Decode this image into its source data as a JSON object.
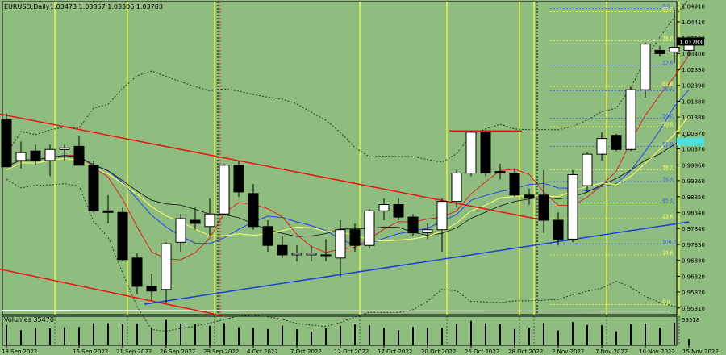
{
  "header": {
    "symbol": "EURUSD,Daily",
    "ohlc": "1.03473 1.03867 1.03306 1.03783"
  },
  "volume_label": "Volumes 35470",
  "colors": {
    "background": "#8fbd7f",
    "bull": "#ffffff",
    "bear": "#000000",
    "vline": "#ffff33",
    "trend_red": "#ee1111",
    "trend_blue": "#1a3fdd",
    "fib_blue": "#3a5cff",
    "fib_yellow": "#ffff55",
    "bollinger": "#1f3f1f",
    "ma_red": "#dd2222",
    "ma_blue": "#2244ee",
    "ma_black": "#111111",
    "ma_yellow": "#ffff66"
  },
  "chart_data": {
    "type": "candlestick",
    "y_ticks": [
      "1.04910",
      "1.04410",
      "1.03900",
      "1.03400",
      "1.02890",
      "1.02390",
      "1.01880",
      "1.01380",
      "1.00870",
      "1.00370",
      "0.99860",
      "0.99360",
      "0.98850",
      "0.98340",
      "0.97840",
      "0.97330",
      "0.96830",
      "0.96320",
      "0.95820",
      "0.95310"
    ],
    "ylim": [
      0.951,
      1.0505
    ],
    "current_price": "1.03783",
    "volume_scale_label": "59518",
    "x_labels": [
      {
        "i": 0,
        "t": "13 Sep 2022"
      },
      {
        "i": 5,
        "t": "16 Sep 2022"
      },
      {
        "i": 8,
        "t": "21 Sep 2022"
      },
      {
        "i": 11,
        "t": "26 Sep 2022"
      },
      {
        "i": 14,
        "t": "29 Sep 2022"
      },
      {
        "i": 17,
        "t": "4 Oct 2022"
      },
      {
        "i": 20,
        "t": "7 Oct 2022"
      },
      {
        "i": 23,
        "t": "12 Oct 2022"
      },
      {
        "i": 26,
        "t": "17 Oct 2022"
      },
      {
        "i": 29,
        "t": "20 Oct 2022"
      },
      {
        "i": 32,
        "t": "25 Oct 2022"
      },
      {
        "i": 35,
        "t": "28 Oct 2022"
      },
      {
        "i": 38,
        "t": "2 Nov 2022"
      },
      {
        "i": 41,
        "t": "7 Nov 2022"
      },
      {
        "i": 44,
        "t": "10 Nov 2022"
      },
      {
        "i": 47,
        "t": "15 Nov 2022"
      }
    ],
    "yellow_vlines": [
      3,
      8,
      14,
      24,
      30,
      35,
      36,
      41,
      46
    ],
    "black_vlines": [
      15,
      37
    ],
    "fib_levels": [
      {
        "label": "0.0",
        "price": 1.0483,
        "color": "blue"
      },
      {
        "label": "23.6",
        "price": 1.0304,
        "color": "blue"
      },
      {
        "label": "38.2",
        "price": 1.0222,
        "color": "blue"
      },
      {
        "label": "50.0",
        "price": 1.0134,
        "color": "blue"
      },
      {
        "label": "61.8",
        "price": 1.0045,
        "color": "blue"
      },
      {
        "label": "76.4",
        "price": 0.9933,
        "color": "blue"
      },
      {
        "label": "85.4",
        "price": 0.9865,
        "color": "blue"
      },
      {
        "label": "100.0",
        "price": 0.9735,
        "color": "blue"
      },
      {
        "label": "88.6",
        "price": 1.0473,
        "color": "yellow"
      },
      {
        "label": "78.6",
        "price": 1.0381,
        "color": "yellow"
      },
      {
        "label": "61.8",
        "price": 1.0236,
        "color": "yellow"
      },
      {
        "label": "50.0",
        "price": 1.0107,
        "color": "yellow"
      },
      {
        "label": "38.2",
        "price": 0.997,
        "color": "yellow"
      },
      {
        "label": "23.6",
        "price": 0.9815,
        "color": "yellow"
      },
      {
        "label": "14.6",
        "price": 0.97,
        "color": "yellow"
      },
      {
        "label": "0.0",
        "price": 0.9542,
        "color": "yellow"
      }
    ],
    "trendlines": [
      {
        "color": "red",
        "from": [
          -0.5,
          1.0148
        ],
        "to": [
          37,
          0.981
        ]
      },
      {
        "color": "red",
        "from": [
          -0.5,
          0.9655
        ],
        "to": [
          15,
          0.9505
        ]
      },
      {
        "color": "red",
        "from": [
          30.5,
          1.0094
        ],
        "to": [
          35.5,
          1.0094
        ]
      },
      {
        "color": "blue",
        "from": [
          9.5,
          0.9543
        ],
        "to": [
          47,
          0.9805
        ]
      }
    ],
    "candles": [
      {
        "o": 1.013,
        "h": 1.015,
        "l": 0.998,
        "c": 0.998
      },
      {
        "o": 1.0,
        "h": 1.006,
        "l": 0.9975,
        "c": 1.0025
      },
      {
        "o": 1.003,
        "h": 1.005,
        "l": 0.9985,
        "c": 1.0
      },
      {
        "o": 1.0,
        "h": 1.005,
        "l": 0.995,
        "c": 1.0035
      },
      {
        "o": 1.0035,
        "h": 1.005,
        "l": 1.0,
        "c": 1.004
      },
      {
        "o": 1.0045,
        "h": 1.008,
        "l": 0.999,
        "c": 0.9985
      },
      {
        "o": 0.9985,
        "h": 1.0,
        "l": 0.9835,
        "c": 0.984
      },
      {
        "o": 0.984,
        "h": 0.989,
        "l": 0.98,
        "c": 0.9835
      },
      {
        "o": 0.9835,
        "h": 0.985,
        "l": 0.968,
        "c": 0.9685
      },
      {
        "o": 0.969,
        "h": 0.9705,
        "l": 0.9575,
        "c": 0.96
      },
      {
        "o": 0.96,
        "h": 0.964,
        "l": 0.9555,
        "c": 0.9585
      },
      {
        "o": 0.959,
        "h": 0.974,
        "l": 0.9545,
        "c": 0.9735
      },
      {
        "o": 0.974,
        "h": 0.983,
        "l": 0.971,
        "c": 0.9815
      },
      {
        "o": 0.981,
        "h": 0.985,
        "l": 0.978,
        "c": 0.98
      },
      {
        "o": 0.979,
        "h": 0.988,
        "l": 0.976,
        "c": 0.983
      },
      {
        "o": 0.983,
        "h": 0.999,
        "l": 0.983,
        "c": 0.9985
      },
      {
        "o": 0.9985,
        "h": 0.9999,
        "l": 0.9885,
        "c": 0.99
      },
      {
        "o": 0.9895,
        "h": 0.9925,
        "l": 0.978,
        "c": 0.979
      },
      {
        "o": 0.979,
        "h": 0.981,
        "l": 0.971,
        "c": 0.973
      },
      {
        "o": 0.973,
        "h": 0.976,
        "l": 0.969,
        "c": 0.97
      },
      {
        "o": 0.97,
        "h": 0.973,
        "l": 0.968,
        "c": 0.9705
      },
      {
        "o": 0.97,
        "h": 0.973,
        "l": 0.968,
        "c": 0.9705
      },
      {
        "o": 0.97,
        "h": 0.975,
        "l": 0.968,
        "c": 0.97
      },
      {
        "o": 0.969,
        "h": 0.981,
        "l": 0.963,
        "c": 0.978
      },
      {
        "o": 0.978,
        "h": 0.98,
        "l": 0.971,
        "c": 0.973
      },
      {
        "o": 0.973,
        "h": 0.9845,
        "l": 0.972,
        "c": 0.984
      },
      {
        "o": 0.984,
        "h": 0.988,
        "l": 0.981,
        "c": 0.986
      },
      {
        "o": 0.986,
        "h": 0.988,
        "l": 0.981,
        "c": 0.982
      },
      {
        "o": 0.982,
        "h": 0.983,
        "l": 0.976,
        "c": 0.977
      },
      {
        "o": 0.977,
        "h": 0.98,
        "l": 0.975,
        "c": 0.978
      },
      {
        "o": 0.978,
        "h": 0.988,
        "l": 0.971,
        "c": 0.987
      },
      {
        "o": 0.987,
        "h": 0.997,
        "l": 0.985,
        "c": 0.996
      },
      {
        "o": 0.996,
        "h": 1.0095,
        "l": 0.995,
        "c": 1.009
      },
      {
        "o": 1.009,
        "h": 1.0095,
        "l": 0.995,
        "c": 0.996
      },
      {
        "o": 0.9965,
        "h": 0.999,
        "l": 0.994,
        "c": 0.996
      },
      {
        "o": 0.996,
        "h": 0.9975,
        "l": 0.9885,
        "c": 0.989
      },
      {
        "o": 0.989,
        "h": 0.991,
        "l": 0.986,
        "c": 0.988
      },
      {
        "o": 0.989,
        "h": 0.997,
        "l": 0.977,
        "c": 0.981
      },
      {
        "o": 0.981,
        "h": 0.9835,
        "l": 0.973,
        "c": 0.975
      },
      {
        "o": 0.975,
        "h": 0.997,
        "l": 0.974,
        "c": 0.9955
      },
      {
        "o": 0.992,
        "h": 1.0025,
        "l": 0.99,
        "c": 1.002
      },
      {
        "o": 1.002,
        "h": 1.009,
        "l": 1.0,
        "c": 1.007
      },
      {
        "o": 1.008,
        "h": 1.0085,
        "l": 1.003,
        "c": 1.0035
      },
      {
        "o": 1.0035,
        "h": 1.0235,
        "l": 1.003,
        "c": 1.0225
      },
      {
        "o": 1.0225,
        "h": 1.0375,
        "l": 1.02,
        "c": 1.037
      },
      {
        "o": 1.035,
        "h": 1.0365,
        "l": 1.033,
        "c": 1.034
      },
      {
        "o": 1.0345,
        "h": 1.048,
        "l": 1.031,
        "c": 1.036
      },
      {
        "o": 1.035,
        "h": 1.0387,
        "l": 1.0331,
        "c": 1.0378
      }
    ],
    "volumes": [
      0.7,
      0.52,
      0.6,
      0.58,
      0.62,
      0.63,
      0.76,
      0.76,
      0.73,
      0.74,
      0.62,
      0.87,
      0.75,
      0.73,
      0.67,
      0.76,
      0.62,
      0.6,
      0.56,
      0.68,
      0.55,
      0.47,
      0.58,
      0.67,
      0.72,
      0.69,
      0.6,
      0.52,
      0.63,
      0.6,
      0.6,
      0.73,
      0.84,
      0.76,
      0.73,
      0.56,
      0.6,
      0.77,
      0.51,
      0.8,
      0.7,
      0.69,
      0.48,
      0.73,
      0.74,
      0.61,
      0.78,
      0.22
    ]
  }
}
